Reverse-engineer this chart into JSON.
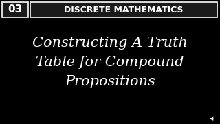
{
  "bg_color": "#000000",
  "header_box_num": "03",
  "header_box_num_bg": "#1a1a1a",
  "header_box_num_border": "#ffffff",
  "header_title": "Discrete Mathematics",
  "header_title_bg": "#1a1a1a",
  "header_title_border": "#ffffff",
  "header_font_color": "#ffffff",
  "main_text_line1": "Constructing A Truth",
  "main_text_line2": "Table for Compound",
  "main_text_line3": "Propositions",
  "main_text_color": "#ffffff",
  "main_font_size": 15,
  "header_font_size": 9,
  "num_font_size": 11,
  "speaker_icon_color": "#ffffff",
  "figsize": [
    3.2,
    1.8
  ],
  "dpi": 100
}
